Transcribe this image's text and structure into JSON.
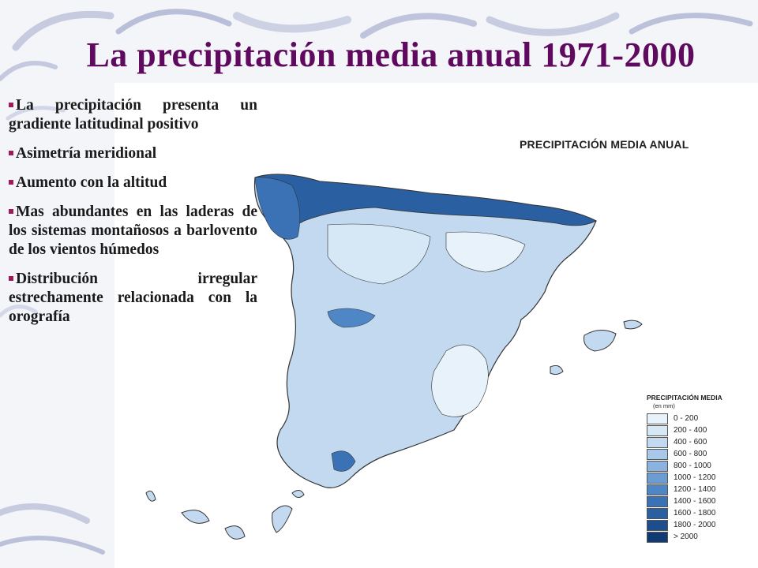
{
  "slide": {
    "title": "La precipitación media anual 1971-2000",
    "bullets": [
      "La precipitación presenta un gradiente latitudinal positivo",
      "Asimetría meridional",
      "Aumento con la altitud",
      "Mas abundantes en las laderas de los sistemas montañosos a barlovento de los vientos húmedos",
      "Distribución irregular estrechamente relacionada con la orografía"
    ]
  },
  "map": {
    "title": "PRECIPITACIÓN MEDIA ANUAL",
    "legend_title": "PRECIPITACIÓN MEDIA",
    "legend_unit": "(en mm)",
    "legend": [
      {
        "label": "0 - 200",
        "color": "#e8f2fa"
      },
      {
        "label": "200 - 400",
        "color": "#d6e7f6"
      },
      {
        "label": "400 - 600",
        "color": "#c2d9f0"
      },
      {
        "label": "600 - 800",
        "color": "#a9c8e9"
      },
      {
        "label": "800 - 1000",
        "color": "#8ab3df"
      },
      {
        "label": "1000 - 1200",
        "color": "#6b9dd3"
      },
      {
        "label": "1200 - 1400",
        "color": "#4f86c5"
      },
      {
        "label": "1400 - 1600",
        "color": "#3a72b5"
      },
      {
        "label": "1600 - 1800",
        "color": "#2a5fa2"
      },
      {
        "label": "1800 - 2000",
        "color": "#1d4d8d"
      },
      {
        "label": "> 2000",
        "color": "#103a74"
      }
    ]
  }
}
